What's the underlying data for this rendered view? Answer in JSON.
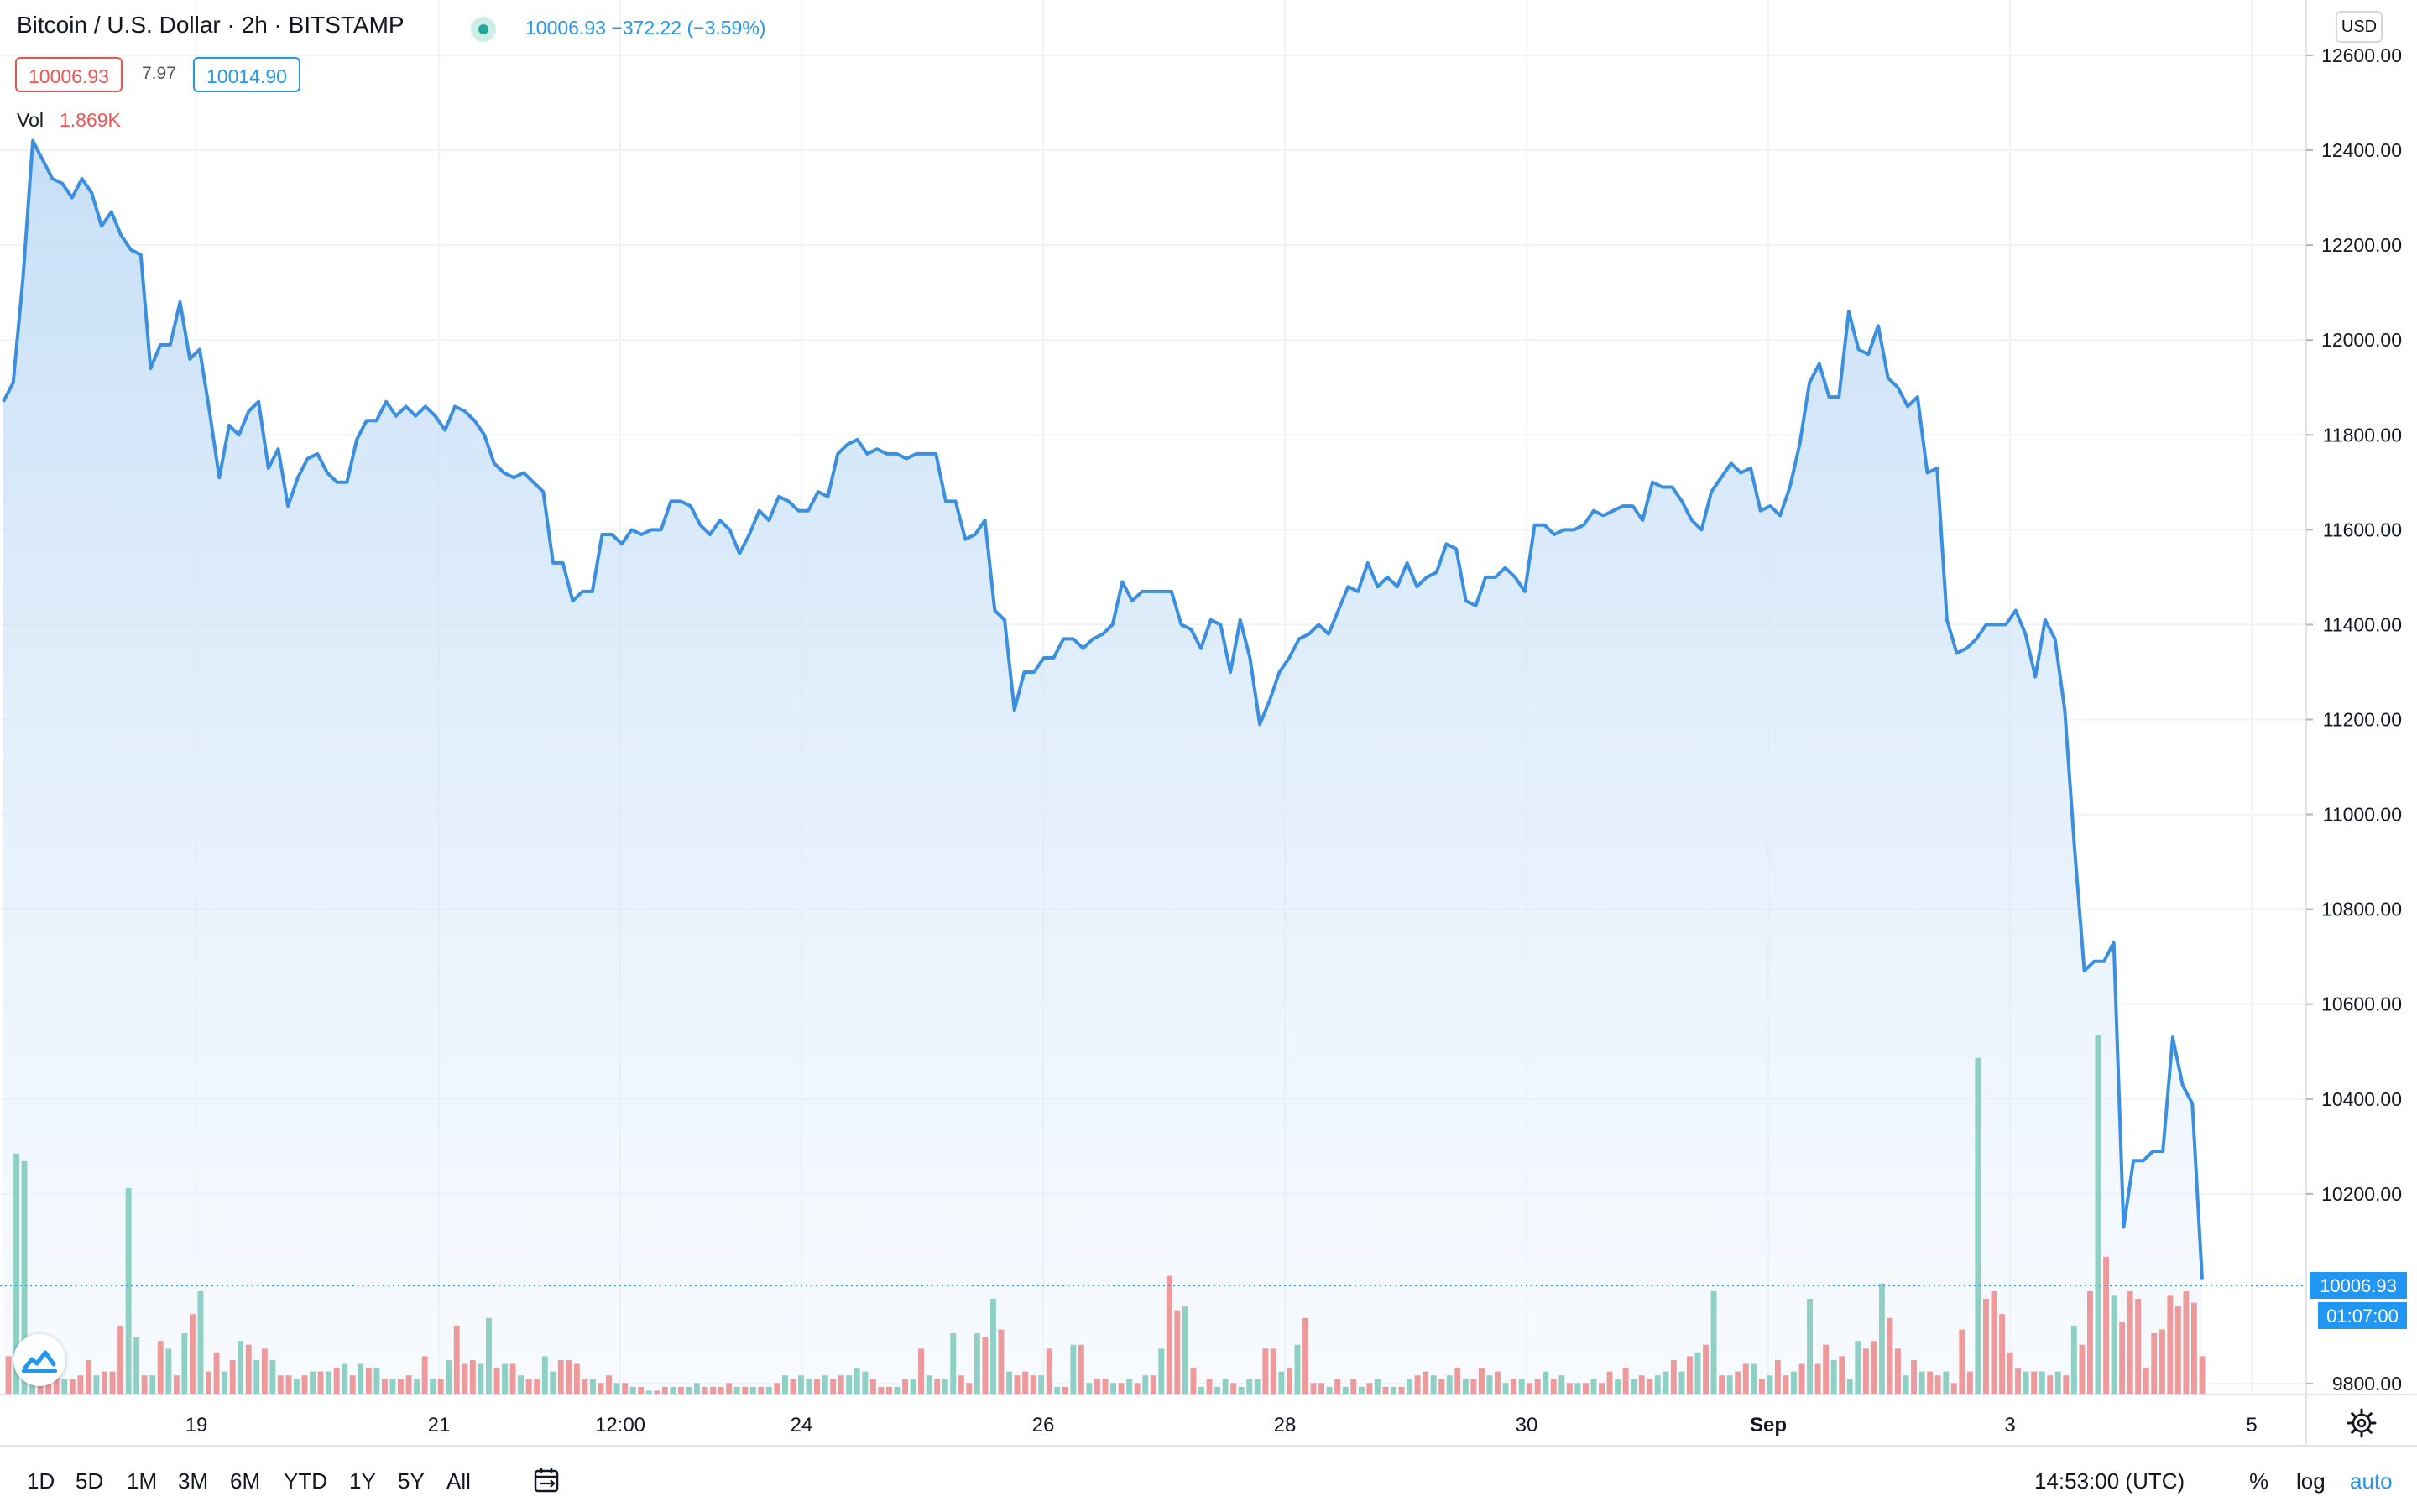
{
  "header": {
    "title": "Bitcoin / U.S. Dollar · 2h · BITSTAMP",
    "price_change": "10006.93 −372.22 (−3.59%)",
    "bid": "10006.93",
    "spread": "7.97",
    "ask": "10014.90",
    "vol_label": "Vol",
    "vol_value": "1.869K",
    "currency": "USD"
  },
  "bottom_bar": {
    "ranges": [
      "1D",
      "5D",
      "1M",
      "3M",
      "6M",
      "YTD",
      "1Y",
      "5Y",
      "All"
    ],
    "time": "14:53:00 (UTC)",
    "percent": "%",
    "log": "log",
    "auto": "auto"
  },
  "colors": {
    "line": "#3b8fe0",
    "vol_up": "#8fd0c5",
    "vol_down": "#ef9a9a",
    "price_label_bg": "#2196f3"
  },
  "icons": [
    "status-dot-icon",
    "calendar-range-icon",
    "tradingview-logo-icon",
    "settings-gear-icon"
  ],
  "chart_data": {
    "type": "area",
    "ylim": [
      9800,
      12600
    ],
    "y_ticks": [
      "12600.00",
      "12400.00",
      "12200.00",
      "12000.00",
      "11800.00",
      "11600.00",
      "11400.00",
      "11200.00",
      "11000.00",
      "10800.00",
      "10600.00",
      "10400.00",
      "10200.00",
      "9800.00"
    ],
    "x_tick_labels": [
      "19",
      "21",
      "12:00",
      "24",
      "26",
      "28",
      "30",
      "Sep",
      "3",
      "5"
    ],
    "current_price_label": "10006.93",
    "countdown_label": "01:07:00",
    "price_series": {
      "name": "BTCUSD",
      "values": [
        11870,
        11910,
        12130,
        12420,
        12380,
        12340,
        12330,
        12300,
        12340,
        12310,
        12240,
        12270,
        12220,
        12190,
        12180,
        11940,
        11990,
        11990,
        12080,
        11960,
        11980,
        11850,
        11710,
        11820,
        11800,
        11850,
        11870,
        11730,
        11770,
        11650,
        11710,
        11750,
        11760,
        11720,
        11700,
        11700,
        11790,
        11830,
        11830,
        11870,
        11840,
        11860,
        11840,
        11860,
        11840,
        11810,
        11860,
        11850,
        11830,
        11800,
        11740,
        11720,
        11710,
        11720,
        11700,
        11680,
        11530,
        11530,
        11450,
        11470,
        11470,
        11590,
        11590,
        11570,
        11600,
        11590,
        11600,
        11600,
        11660,
        11660,
        11650,
        11610,
        11590,
        11620,
        11600,
        11550,
        11590,
        11640,
        11620,
        11670,
        11660,
        11640,
        11640,
        11680,
        11670,
        11760,
        11780,
        11790,
        11760,
        11770,
        11760,
        11760,
        11750,
        11760,
        11760,
        11760,
        11660,
        11660,
        11580,
        11590,
        11620,
        11430,
        11410,
        11220,
        11300,
        11300,
        11330,
        11330,
        11370,
        11370,
        11350,
        11370,
        11380,
        11400,
        11490,
        11450,
        11470,
        11470,
        11470,
        11470,
        11400,
        11390,
        11350,
        11410,
        11400,
        11300,
        11410,
        11330,
        11190,
        11240,
        11300,
        11330,
        11370,
        11380,
        11400,
        11380,
        11430,
        11480,
        11470,
        11530,
        11480,
        11500,
        11480,
        11530,
        11480,
        11500,
        11510,
        11570,
        11560,
        11450,
        11440,
        11500,
        11500,
        11520,
        11500,
        11470,
        11610,
        11610,
        11590,
        11600,
        11600,
        11610,
        11640,
        11630,
        11640,
        11650,
        11650,
        11620,
        11700,
        11690,
        11690,
        11660,
        11620,
        11600,
        11680,
        11710,
        11740,
        11720,
        11730,
        11640,
        11650,
        11630,
        11690,
        11780,
        11910,
        11950,
        11880,
        11880,
        12060,
        11980,
        11970,
        12030,
        11920,
        11900,
        11860,
        11880,
        11720,
        11730,
        11410,
        11340,
        11350,
        11370,
        11400,
        11400,
        11400,
        11430,
        11380,
        11290,
        11410,
        11370,
        11220,
        10930,
        10670,
        10690,
        10690,
        10730,
        10130,
        10270,
        10270,
        10290,
        10290,
        10530,
        10430,
        10390,
        10020
      ]
    },
    "volume_series": {
      "name": "Vol",
      "values": [
        0.1,
        0.63,
        0.61,
        0.11,
        0.06,
        0.04,
        0.08,
        0.04,
        0.04,
        0.05,
        0.09,
        0.05,
        0.06,
        0.06,
        0.18,
        0.54,
        0.15,
        0.05,
        0.05,
        0.14,
        0.12,
        0.05,
        0.16,
        0.21,
        0.27,
        0.06,
        0.11,
        0.06,
        0.09,
        0.14,
        0.13,
        0.09,
        0.12,
        0.09,
        0.05,
        0.05,
        0.04,
        0.05,
        0.06,
        0.06,
        0.06,
        0.07,
        0.08,
        0.05,
        0.08,
        0.07,
        0.07,
        0.04,
        0.04,
        0.04,
        0.05,
        0.04,
        0.1,
        0.04,
        0.04,
        0.09,
        0.18,
        0.08,
        0.09,
        0.08,
        0.2,
        0.07,
        0.08,
        0.08,
        0.05,
        0.04,
        0.04,
        0.1,
        0.06,
        0.09,
        0.09,
        0.08,
        0.04,
        0.04,
        0.03,
        0.05,
        0.03,
        0.03,
        0.02,
        0.02,
        0.01,
        0.01,
        0.02,
        0.02,
        0.02,
        0.02,
        0.03,
        0.02,
        0.02,
        0.02,
        0.03,
        0.02,
        0.02,
        0.02,
        0.02,
        0.02,
        0.03,
        0.05,
        0.04,
        0.05,
        0.04,
        0.04,
        0.05,
        0.04,
        0.05,
        0.05,
        0.07,
        0.06,
        0.04,
        0.02,
        0.02,
        0.02,
        0.04,
        0.04,
        0.12,
        0.05,
        0.04,
        0.04,
        0.16,
        0.05,
        0.03,
        0.16,
        0.15,
        0.25,
        0.17,
        0.06,
        0.05,
        0.06,
        0.05,
        0.05,
        0.12,
        0.02,
        0.02,
        0.13,
        0.13,
        0.03,
        0.04,
        0.04,
        0.03,
        0.03,
        0.04,
        0.03,
        0.05,
        0.05,
        0.12,
        0.31,
        0.22,
        0.23,
        0.07,
        0.02,
        0.04,
        0.02,
        0.04,
        0.03,
        0.02,
        0.04,
        0.04,
        0.12,
        0.12,
        0.06,
        0.07,
        0.13,
        0.2,
        0.03,
        0.03,
        0.02,
        0.04,
        0.02,
        0.04,
        0.02,
        0.03,
        0.04,
        0.02,
        0.02,
        0.02,
        0.04,
        0.05,
        0.06,
        0.05,
        0.04,
        0.05,
        0.07,
        0.04,
        0.04,
        0.07,
        0.05,
        0.06,
        0.03,
        0.04,
        0.04,
        0.03,
        0.04,
        0.06,
        0.04,
        0.05,
        0.03,
        0.03,
        0.03,
        0.04,
        0.03,
        0.06,
        0.04,
        0.07,
        0.04,
        0.05,
        0.04,
        0.05,
        0.06,
        0.09,
        0.06,
        0.1,
        0.11,
        0.13,
        0.27,
        0.05,
        0.05,
        0.06,
        0.08,
        0.08,
        0.04,
        0.05,
        0.09,
        0.05,
        0.06,
        0.08,
        0.25,
        0.08,
        0.13,
        0.09,
        0.1,
        0.04,
        0.14,
        0.12,
        0.14,
        0.29,
        0.2,
        0.12,
        0.05,
        0.09,
        0.06,
        0.06,
        0.05,
        0.06,
        0.03,
        0.17,
        0.06,
        0.88,
        0.25,
        0.27,
        0.21,
        0.11,
        0.07,
        0.06,
        0.06,
        0.06,
        0.05,
        0.06,
        0.05,
        0.18,
        0.13,
        0.27,
        0.94,
        0.36,
        0.26,
        0.19,
        0.27,
        0.25,
        0.07,
        0.16,
        0.17,
        0.26,
        0.23,
        0.27,
        0.24,
        0.1
      ],
      "up": [
        false,
        true,
        true,
        true,
        false,
        false,
        false,
        true,
        false,
        false,
        false,
        true,
        false,
        false,
        false,
        true,
        true,
        false,
        true,
        false,
        true,
        false,
        true,
        false,
        true,
        false,
        false,
        true,
        false,
        true,
        false,
        true,
        false,
        true,
        false,
        false,
        true,
        false,
        true,
        false,
        true,
        false,
        true,
        false,
        true,
        false,
        true,
        false,
        true,
        false,
        false,
        true,
        false,
        true,
        false,
        true,
        false,
        false,
        false,
        true,
        true,
        false,
        true,
        false,
        true,
        false,
        false,
        true,
        true,
        false,
        false,
        false,
        false,
        true,
        false,
        false,
        true,
        false,
        true,
        false,
        true,
        false,
        false,
        true,
        false,
        true,
        true,
        false,
        false,
        false,
        false,
        true,
        false,
        true,
        false,
        true,
        false,
        true,
        false,
        true,
        true,
        false,
        true,
        false,
        false,
        true,
        true,
        true,
        false,
        false,
        false,
        true,
        false,
        true,
        false,
        true,
        false,
        true,
        true,
        false,
        false,
        true,
        false,
        true,
        false,
        true,
        false,
        false,
        false,
        true,
        false,
        true,
        false,
        true,
        false,
        true,
        false,
        false,
        true,
        false,
        true,
        false,
        true,
        false,
        true,
        false,
        false,
        true,
        false,
        true,
        false,
        true,
        true,
        false,
        true,
        true,
        true,
        false,
        false,
        true,
        false,
        true,
        false,
        false,
        false,
        true,
        false,
        true,
        false,
        true,
        false,
        true,
        false,
        true,
        false,
        true,
        false,
        false,
        true,
        false,
        true,
        false,
        true,
        false,
        false,
        true,
        false,
        true,
        false,
        true,
        false,
        false,
        true,
        false,
        true,
        false,
        true,
        false,
        true,
        false,
        false,
        true,
        false,
        true,
        false,
        false,
        true,
        true,
        false,
        true,
        false,
        true,
        false,
        true,
        false,
        true,
        false,
        false,
        true,
        false,
        true,
        false,
        false,
        true,
        false,
        true,
        false,
        false,
        true,
        false,
        true,
        true,
        false,
        false,
        true,
        false,
        false,
        true,
        false,
        true,
        false,
        false,
        true,
        false,
        false,
        false,
        true,
        false,
        false,
        false,
        false,
        false,
        true,
        false,
        true,
        false,
        true,
        false,
        true,
        false,
        false,
        true,
        false,
        true,
        false,
        false
      ]
    }
  }
}
